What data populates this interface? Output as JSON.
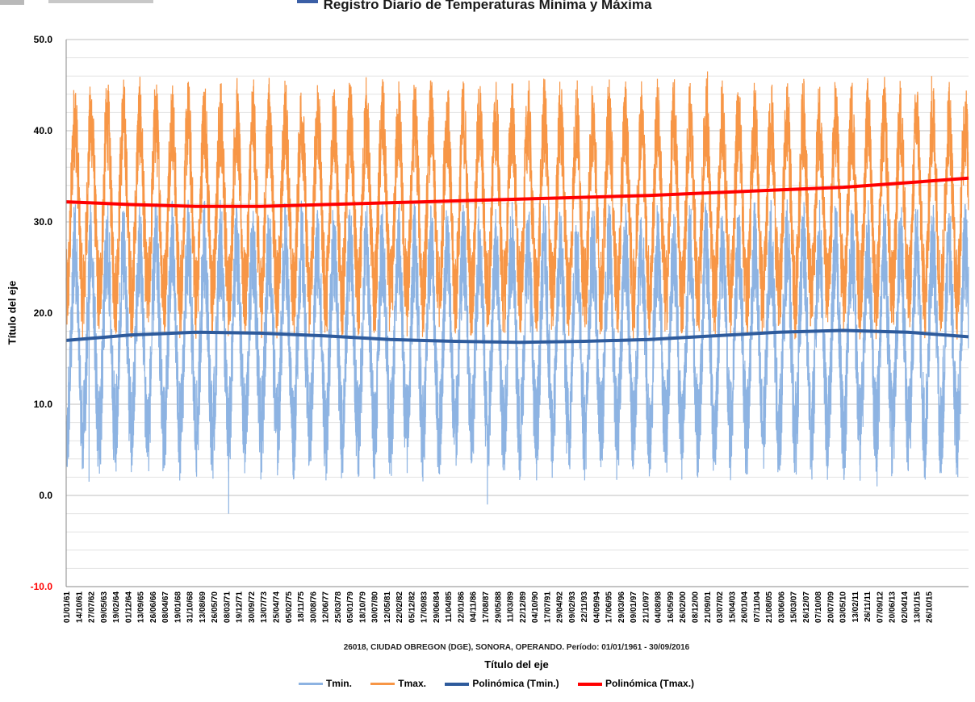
{
  "chart_data": {
    "type": "line",
    "title": "Registro Diario de Temperaturas Mínima y Máxima",
    "subtitle": "26018, CIUDAD OBREGON (DGE), SONORA, OPERANDO. Período: 01/01/1961 - 30/09/2016",
    "xlabel": "Título del eje",
    "ylabel": "Título del eje",
    "ylim": [
      -10,
      50
    ],
    "y_ticks": [
      {
        "value": 50,
        "label": "50.0"
      },
      {
        "value": 40,
        "label": "40.0"
      },
      {
        "value": 30,
        "label": "30.0"
      },
      {
        "value": 20,
        "label": "20.0"
      },
      {
        "value": 10,
        "label": "10.0"
      },
      {
        "value": 0,
        "label": "0.0"
      },
      {
        "value": -10,
        "label": "-10.0"
      }
    ],
    "x_range": [
      "1961-01-01",
      "2016-09-30"
    ],
    "x_tick_labels": [
      "01/01/61",
      "14/10/61",
      "27/07/62",
      "09/05/63",
      "19/02/64",
      "01/12/64",
      "13/09/65",
      "26/06/66",
      "08/04/67",
      "19/01/68",
      "31/10/68",
      "13/08/69",
      "26/05/70",
      "08/03/71",
      "19/12/71",
      "30/09/72",
      "13/07/73",
      "25/04/74",
      "05/02/75",
      "18/11/75",
      "30/08/76",
      "12/06/77",
      "25/03/78",
      "05/01/79",
      "18/10/79",
      "30/07/80",
      "12/05/81",
      "22/02/82",
      "05/12/82",
      "17/09/83",
      "29/06/84",
      "11/04/85",
      "22/01/86",
      "04/11/86",
      "17/08/87",
      "29/05/88",
      "11/03/89",
      "22/12/89",
      "04/10/90",
      "17/07/91",
      "29/04/92",
      "09/02/93",
      "22/11/93",
      "04/09/94",
      "17/06/95",
      "29/03/96",
      "09/01/97",
      "21/10/97",
      "04/08/98",
      "16/05/99",
      "26/02/00",
      "08/12/00",
      "21/09/01",
      "03/07/02",
      "15/04/03",
      "26/01/04",
      "07/11/04",
      "21/08/05",
      "03/06/06",
      "15/03/07",
      "26/12/07",
      "07/10/08",
      "20/07/09",
      "03/05/10",
      "13/02/11",
      "26/11/11",
      "07/09/12",
      "20/06/13",
      "02/04/14",
      "13/01/15",
      "26/10/15"
    ],
    "grid": true,
    "legend_position": "bottom",
    "series": [
      {
        "name": "Tmin.",
        "color": "#8db3e2",
        "kind": "daily",
        "typical_summer": 27,
        "typical_winter": 7,
        "extremes": [
          {
            "date": "1962-06-01",
            "value": 1.5
          },
          {
            "date": "1971-01-15",
            "value": -2.0
          },
          {
            "date": "1987-01-10",
            "value": -1.0
          },
          {
            "date": "2011-02-04",
            "value": 1.0
          }
        ]
      },
      {
        "name": "Tmax.",
        "color": "#f79646",
        "kind": "daily",
        "typical_summer": 41,
        "typical_winter": 22,
        "extremes": [
          {
            "date": "1976-07-10",
            "value": 45.0
          },
          {
            "date": "2000-08-15",
            "value": 46.5
          },
          {
            "date": "2014-06-20",
            "value": 46.0
          }
        ]
      },
      {
        "name": "Polinómica (Tmin.)",
        "color": "#2e5b9c",
        "kind": "trend",
        "points": [
          {
            "x": "1961-01-01",
            "y": 17.0
          },
          {
            "x": "1965-01-01",
            "y": 17.6
          },
          {
            "x": "1969-01-01",
            "y": 17.9
          },
          {
            "x": "1973-01-01",
            "y": 17.8
          },
          {
            "x": "1977-01-01",
            "y": 17.5
          },
          {
            "x": "1981-01-01",
            "y": 17.1
          },
          {
            "x": "1985-01-01",
            "y": 16.9
          },
          {
            "x": "1989-01-01",
            "y": 16.8
          },
          {
            "x": "1993-01-01",
            "y": 16.9
          },
          {
            "x": "1997-01-01",
            "y": 17.1
          },
          {
            "x": "2001-01-01",
            "y": 17.5
          },
          {
            "x": "2005-01-01",
            "y": 17.9
          },
          {
            "x": "2009-01-01",
            "y": 18.1
          },
          {
            "x": "2013-01-01",
            "y": 17.9
          },
          {
            "x": "2016-09-30",
            "y": 17.4
          }
        ]
      },
      {
        "name": "Polinómica (Tmax.)",
        "color": "#ff0000",
        "kind": "trend",
        "points": [
          {
            "x": "1961-01-01",
            "y": 32.2
          },
          {
            "x": "1965-01-01",
            "y": 31.9
          },
          {
            "x": "1969-01-01",
            "y": 31.7
          },
          {
            "x": "1973-01-01",
            "y": 31.7
          },
          {
            "x": "1977-01-01",
            "y": 31.9
          },
          {
            "x": "1981-01-01",
            "y": 32.1
          },
          {
            "x": "1985-01-01",
            "y": 32.3
          },
          {
            "x": "1989-01-01",
            "y": 32.5
          },
          {
            "x": "1993-01-01",
            "y": 32.7
          },
          {
            "x": "1997-01-01",
            "y": 32.9
          },
          {
            "x": "2001-01-01",
            "y": 33.2
          },
          {
            "x": "2005-01-01",
            "y": 33.5
          },
          {
            "x": "2009-01-01",
            "y": 33.8
          },
          {
            "x": "2013-01-01",
            "y": 34.3
          },
          {
            "x": "2016-09-30",
            "y": 34.8
          }
        ]
      }
    ]
  }
}
